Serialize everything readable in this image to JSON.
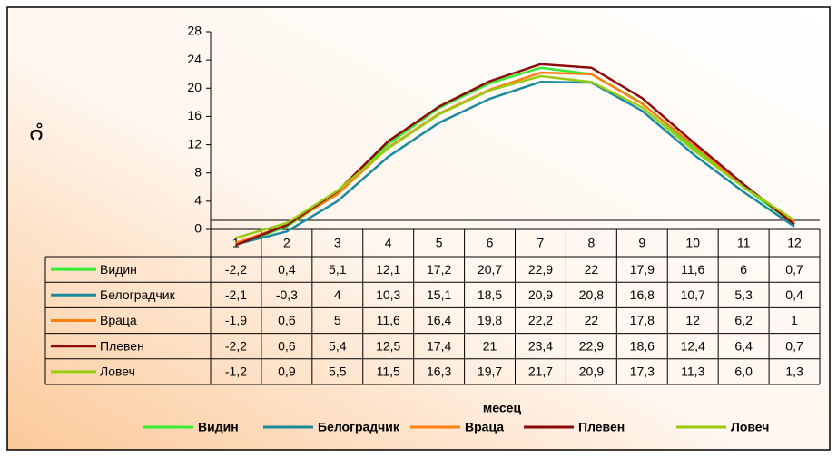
{
  "chart_data": {
    "type": "line",
    "y_label": "°C",
    "x_label": "месец",
    "categories": [
      "1",
      "2",
      "3",
      "4",
      "5",
      "6",
      "7",
      "8",
      "9",
      "10",
      "11",
      "12"
    ],
    "ylim": [
      0,
      28
    ],
    "yticks": [
      0,
      4,
      8,
      12,
      16,
      20,
      24,
      28
    ],
    "legend": "bottom",
    "series": [
      {
        "name": "Видин",
        "color": "#33ee33",
        "values": [
          -2.2,
          0.4,
          5.1,
          12.1,
          17.2,
          20.7,
          22.9,
          22,
          17.9,
          11.6,
          6,
          0.7
        ],
        "value_labels": [
          "-2,2",
          "0,4",
          "5,1",
          "12,1",
          "17,2",
          "20,7",
          "22,9",
          "22",
          "17,9",
          "11,6",
          "6",
          "0,7"
        ]
      },
      {
        "name": "Белоградчик",
        "color": "#1b8a9c",
        "values": [
          -2.1,
          -0.3,
          4,
          10.3,
          15.1,
          18.5,
          20.9,
          20.8,
          16.8,
          10.7,
          5.3,
          0.4
        ],
        "value_labels": [
          "-2,1",
          "-0,3",
          "4",
          "10,3",
          "15,1",
          "18,5",
          "20,9",
          "20,8",
          "16,8",
          "10,7",
          "5,3",
          "0,4"
        ]
      },
      {
        "name": "Враца",
        "color": "#ff7f10",
        "values": [
          -1.9,
          0.6,
          5,
          11.6,
          16.4,
          19.8,
          22.2,
          22,
          17.8,
          12,
          6.2,
          1
        ],
        "value_labels": [
          "-1,9",
          "0,6",
          "5",
          "11,6",
          "16,4",
          "19,8",
          "22,2",
          "22",
          "17,8",
          "12",
          "6,2",
          "1"
        ]
      },
      {
        "name": "Плевен",
        "color": "#8b0a0a",
        "values": [
          -2.2,
          0.6,
          5.4,
          12.5,
          17.4,
          21,
          23.4,
          22.9,
          18.6,
          12.4,
          6.4,
          0.7
        ],
        "value_labels": [
          "-2,2",
          "0,6",
          "5,4",
          "12,5",
          "17,4",
          "21",
          "23,4",
          "22,9",
          "18,6",
          "12,4",
          "6,4",
          "0,7"
        ]
      },
      {
        "name": "Ловеч",
        "color": "#9acb10",
        "values": [
          -1.2,
          0.9,
          5.5,
          11.5,
          16.3,
          19.7,
          21.7,
          20.9,
          17.3,
          11.3,
          6.0,
          1.3
        ],
        "value_labels": [
          "-1,2",
          "0,9",
          "5,5",
          "11,5",
          "16,3",
          "19,7",
          "21,7",
          "20,9",
          "17,3",
          "11,3",
          "6,0",
          "1,3"
        ]
      }
    ]
  }
}
